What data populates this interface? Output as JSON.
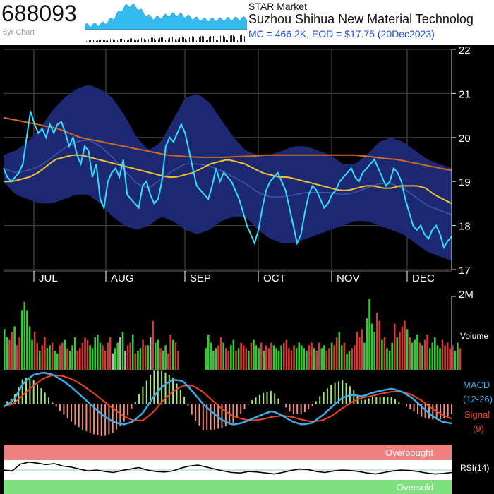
{
  "header": {
    "ticker": "688093",
    "subtitle": "5yr Chart",
    "exchange": "STAR Market",
    "company": "Suzhou Shihua New Material Technolog",
    "market_cap_line": "MC = 466.2K, EOD = $17.75 (20Dec2023)"
  },
  "colors": {
    "background": "#000000",
    "price": "#33ddff",
    "band_fill": "#1e2a78",
    "ma_short": "#f0c030",
    "ma_long": "#d2691e",
    "vol_up": "#33cc33",
    "vol_down": "#d23a3a",
    "macd": "#3aaeea",
    "signal": "#ee4422",
    "overbought": "#f08080",
    "oversold": "#7fe07f"
  },
  "chart_data": [
    {
      "type": "line",
      "title": "Price",
      "ylim": [
        17,
        22
      ],
      "y_ticks": [
        "17",
        "18",
        "19",
        "20",
        "21",
        "22"
      ],
      "x_labels": [
        "JUL",
        "AUG",
        "SEP",
        "OCT",
        "NOV",
        "DEC"
      ],
      "series": [
        {
          "values": [
            19.3,
            19.1,
            19.0,
            19.1,
            19.2,
            19.4,
            20.0,
            20.6,
            20.3,
            20.1,
            20.2,
            20.0,
            20.3,
            20.1,
            20.3,
            20.35,
            20.1,
            19.8,
            20.0,
            19.6,
            19.4,
            19.8,
            19.7,
            19.1,
            19.4,
            18.6,
            18.4,
            19.0,
            19.2,
            19.3,
            19.1,
            19.5,
            18.7,
            18.6,
            18.5,
            18.4,
            18.9,
            19.0,
            18.7,
            18.5,
            18.6,
            19.0,
            19.8,
            20.0,
            19.9,
            20.1,
            20.3,
            20.1,
            19.7,
            19.3,
            18.9,
            18.8,
            18.7,
            18.6,
            18.9,
            19.3,
            19.0,
            19.2,
            19.1,
            19.0,
            18.8,
            18.6,
            18.3,
            18.0,
            17.8,
            17.6,
            17.9,
            18.4,
            18.8,
            19.0,
            19.1,
            19.2,
            19.0,
            18.8,
            18.4,
            18.0,
            17.6,
            17.8,
            18.3,
            18.7,
            18.9,
            18.8,
            18.6,
            18.4,
            18.5,
            18.7,
            18.8,
            19.0,
            19.1,
            19.2,
            19.3,
            19.1,
            19.0,
            19.2,
            19.3,
            19.4,
            19.5,
            19.3,
            19.1,
            18.9,
            19.0,
            19.3,
            19.2,
            19.0,
            18.6,
            18.3,
            18.0,
            17.9,
            18.0,
            17.8,
            17.7,
            17.9,
            18.0,
            17.8,
            17.5,
            17.65,
            17.75
          ]
        },
        {
          "values": [
            19.0,
            19.0,
            19.05,
            19.1,
            19.2,
            19.35,
            19.5,
            19.55,
            19.6,
            19.6,
            19.55,
            19.5,
            19.45,
            19.4,
            19.35,
            19.3,
            19.25,
            19.2,
            19.15,
            19.1,
            19.1,
            19.15,
            19.2,
            19.3,
            19.4,
            19.45,
            19.5,
            19.45,
            19.4,
            19.3,
            19.2,
            19.15,
            19.1,
            19.1,
            19.05,
            19.0,
            18.95,
            18.9,
            18.85,
            18.8,
            18.8,
            18.85,
            18.9,
            18.9,
            18.85,
            18.85,
            18.9,
            18.9,
            18.9,
            18.85,
            18.7,
            18.6,
            18.5
          ]
        },
        {
          "values": [
            20.45,
            20.4,
            20.35,
            20.3,
            20.25,
            20.2,
            20.1,
            20.0,
            19.95,
            19.9,
            19.85,
            19.8,
            19.75,
            19.7,
            19.65,
            19.6,
            19.58,
            19.56,
            19.55,
            19.55,
            19.55,
            19.56,
            19.57,
            19.58,
            19.6,
            19.6,
            19.6,
            19.6,
            19.6,
            19.6,
            19.6,
            19.6,
            19.6,
            19.58,
            19.55,
            19.52,
            19.5,
            19.45,
            19.4,
            19.35,
            19.3,
            19.25
          ]
        },
        {
          "values": [
            19.6,
            19.7,
            19.9,
            20.2,
            20.6,
            20.9,
            21.1,
            21.2,
            21.1,
            20.9,
            20.5,
            20.0,
            19.7,
            19.9,
            20.4,
            20.9,
            21.0,
            20.8,
            20.4,
            20.0,
            19.7,
            19.6,
            19.6,
            19.7,
            19.8,
            19.8,
            19.7,
            19.6,
            19.4,
            19.4,
            19.6,
            19.9,
            20.0,
            19.9,
            19.7,
            19.5,
            19.4,
            19.3
          ]
        },
        {
          "values": [
            19.0,
            18.7,
            18.6,
            18.5,
            18.5,
            18.6,
            18.7,
            18.7,
            18.5,
            18.2,
            18.0,
            17.9,
            18.0,
            18.2,
            18.1,
            17.9,
            17.8,
            17.9,
            18.1,
            18.2,
            18.2,
            17.9,
            17.7,
            17.6,
            17.6,
            17.7,
            17.8,
            17.9,
            18.0,
            18.1,
            18.1,
            18.0,
            17.9,
            17.8,
            17.6,
            17.4,
            17.3,
            17.2
          ]
        }
      ]
    },
    {
      "type": "bar",
      "title": "Volume",
      "ylabel": "Volume",
      "ylim": [
        0,
        2000000
      ],
      "y_ticks": [
        "2M"
      ],
      "series": [
        {
          "values": [
            0.75,
            0.6,
            0.55,
            0.7,
            0.8,
            0.45,
            0.6,
            1.1,
            1.25,
            1.1,
            0.8,
            0.55,
            0.7,
            0.5,
            0.35,
            0.45,
            0.6,
            0.4,
            0.45,
            0.5,
            0.35,
            0.3,
            0.45,
            0.5,
            0.55,
            0.4,
            0.35,
            0.45,
            0.6,
            0.35,
            0.4,
            0.5,
            0.6,
            0.55,
            0.45,
            0.4,
            0.6,
            0.65,
            0.5,
            0.45,
            0.35,
            0.5,
            0.6,
            0.3,
            0.4,
            0.5,
            0.6,
            0.7,
            0.35,
            0.45,
            0.5,
            0.65,
            0.3,
            0.35,
            0.4,
            0.55,
            0.45,
            0.45,
            0.6,
            0.9,
            0.5,
            0.55,
            0.4,
            0.35,
            0.45,
            0.3,
            0.65,
            0.55,
            0.5,
            0.35,
            0.4,
            0.65,
            0.5,
            0.35,
            0.4,
            0.45,
            0.6,
            0.5,
            0.4,
            0.35,
            0.45,
            0.55,
            0.35,
            0.4,
            0.5,
            0.45,
            0.4,
            0.35,
            0.5,
            0.55,
            0.45,
            0.4,
            0.5,
            0.35,
            0.45,
            0.4,
            0.5,
            0.45,
            0.4,
            0.35,
            0.45,
            0.5,
            0.55,
            0.4,
            0.35,
            0.45,
            0.4,
            0.5,
            0.45,
            0.4,
            0.35,
            0.45,
            0.5,
            0.4,
            0.35,
            0.5,
            0.4,
            0.45,
            0.35,
            0.4,
            0.5,
            0.45,
            0.6,
            0.7,
            0.45,
            0.5,
            0.3,
            0.35,
            0.4,
            0.45,
            0.7,
            0.6,
            0.75,
            0.5,
            0.95,
            1.3,
            0.85,
            0.7,
            1.05,
            0.9,
            0.55,
            0.6,
            0.4,
            0.35,
            0.5,
            0.85,
            0.6,
            0.7,
            0.8,
            0.9,
            0.75,
            0.6,
            0.5,
            0.55,
            0.65,
            0.5,
            0.45,
            0.55,
            0.65,
            0.4,
            0.5,
            0.6,
            0.45,
            0.4,
            0.55,
            0.45,
            0.5,
            0.4,
            0.45,
            0.35,
            0.5,
            0.4
          ]
        }
      ]
    },
    {
      "type": "line",
      "title": "MACD",
      "ylabel": "MACD (12-26) Signal (9)",
      "series": [
        {
          "name": "MACD",
          "values": [
            -0.05,
            0.05,
            0.35,
            0.48,
            0.52,
            0.48,
            0.38,
            0.25,
            0.1,
            -0.05,
            -0.2,
            -0.3,
            -0.35,
            -0.3,
            -0.15,
            0.1,
            0.3,
            0.4,
            0.38,
            0.2,
            0.0,
            -0.15,
            -0.28,
            -0.35,
            -0.32,
            -0.25,
            -0.18,
            -0.12,
            -0.2,
            -0.3,
            -0.35,
            -0.32,
            -0.2,
            -0.05,
            0.1,
            0.15,
            0.12,
            0.18,
            0.22,
            0.25,
            0.2,
            0.1,
            -0.05,
            -0.2,
            -0.3,
            -0.33
          ]
        },
        {
          "name": "Signal",
          "values": [
            -0.05,
            0.0,
            0.15,
            0.3,
            0.42,
            0.48,
            0.46,
            0.4,
            0.3,
            0.18,
            0.05,
            -0.08,
            -0.2,
            -0.28,
            -0.28,
            -0.15,
            0.05,
            0.2,
            0.3,
            0.3,
            0.2,
            0.05,
            -0.1,
            -0.2,
            -0.26,
            -0.28,
            -0.26,
            -0.22,
            -0.2,
            -0.22,
            -0.27,
            -0.3,
            -0.28,
            -0.2,
            -0.08,
            0.03,
            0.1,
            0.13,
            0.17,
            0.2,
            0.2,
            0.15,
            0.05,
            -0.08,
            -0.18,
            -0.25
          ]
        }
      ]
    },
    {
      "type": "line",
      "title": "RSI",
      "ylabel": "RSI(14)",
      "annotations": [
        "Overbought",
        "Oversold"
      ],
      "series": [
        {
          "name": "RSI(14)",
          "values": [
            50,
            48,
            62,
            66,
            64,
            61,
            63,
            58,
            56,
            52,
            48,
            50,
            47,
            45,
            49,
            52,
            55,
            50,
            47,
            46,
            48,
            54,
            58,
            60,
            56,
            52,
            48,
            45,
            44,
            47,
            46,
            44,
            42,
            45,
            49,
            52,
            51,
            47,
            45,
            48,
            50,
            49,
            47,
            44,
            42,
            45,
            48,
            50,
            49,
            47,
            44,
            42,
            43,
            45
          ]
        }
      ]
    }
  ]
}
